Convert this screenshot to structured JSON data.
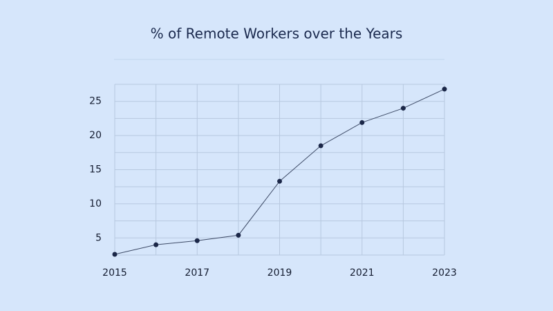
{
  "chart_data": {
    "type": "line",
    "title": "% of Remote Workers over the Years",
    "x": [
      2015,
      2016,
      2017,
      2018,
      2019,
      2020,
      2021,
      2022,
      2023
    ],
    "series": [
      {
        "name": "% of Remote Workers",
        "color": "#1b2748",
        "values": [
          2.6,
          4.0,
          4.6,
          5.4,
          13.3,
          18.5,
          21.9,
          24.0,
          26.8
        ]
      }
    ],
    "xlim": [
      2015,
      2023
    ],
    "xticks": [
      2015,
      2017,
      2019,
      2021,
      2023
    ],
    "ylim": [
      2.5,
      27.5
    ],
    "yticks": [
      5,
      10,
      15,
      20,
      25
    ],
    "grid": true
  }
}
